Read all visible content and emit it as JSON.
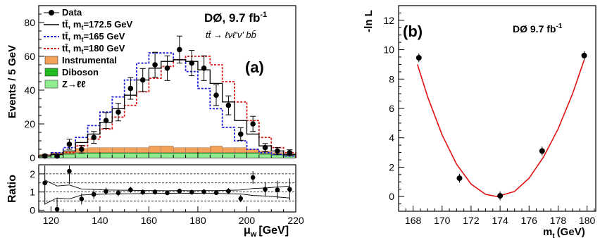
{
  "chart_data": [
    {
      "type": "bar",
      "panel_label": "(a)",
      "experiment_label": "DØ, 9.7 fb",
      "experiment_label_sup": "-1",
      "channel_label": "tt̄ → ℓνℓ'ν' bb̄",
      "xlabel": "μ",
      "xlabel_sub": "w",
      "xlabel_unit": "[GeV]",
      "ylabel": "Events / 5 GeV",
      "ratio_ylabel": "Ratio",
      "xlim": [
        115,
        220
      ],
      "ylim": [
        0,
        90
      ],
      "ratio_ylim": [
        -0.1,
        2.5
      ],
      "x_ticks": [
        120,
        140,
        160,
        180,
        200,
        220
      ],
      "y_ticks": [
        0,
        20,
        40,
        60,
        80
      ],
      "ratio_ticks": [
        0,
        1,
        2
      ],
      "bin_edges": [
        115,
        120,
        125,
        130,
        135,
        140,
        145,
        150,
        155,
        160,
        165,
        170,
        175,
        180,
        185,
        190,
        195,
        200,
        205,
        210,
        215,
        220
      ],
      "legend": {
        "data": "Data",
        "nominal": "tt̄, m",
        "nominal_sub": "t",
        "nominal_tail": "=172.5 GeV",
        "low": "tt̄, m",
        "low_sub": "t",
        "low_tail": "=165 GeV",
        "high": "tt̄, m",
        "high_sub": "t",
        "high_tail": "=180 GeV",
        "instrumental": "Instrumental",
        "diboson": "Diboson",
        "zll": "Z→ℓℓ"
      },
      "colors": {
        "nominal": "#000000",
        "low": "#1c1cd6",
        "high": "#d61c1c",
        "instrumental": "#f4a15a",
        "diboson": "#22bb22",
        "zll": "#90ee90"
      },
      "series": [
        {
          "name": "Data",
          "x": [
            117.5,
            122.5,
            127.5,
            132.5,
            137.5,
            142.5,
            147.5,
            152.5,
            157.5,
            162.5,
            167.5,
            172.5,
            177.5,
            182.5,
            187.5,
            192.5,
            197.5,
            202.5,
            207.5,
            212.5,
            217.5
          ],
          "values": [
            1,
            1,
            8,
            5,
            12,
            22,
            27,
            41,
            46,
            55,
            53,
            64,
            56,
            53,
            37,
            31,
            14,
            20,
            6,
            4,
            3
          ],
          "errors": [
            1,
            1,
            3,
            2.2,
            3.5,
            4.7,
            5.2,
            6.4,
            6.8,
            7.4,
            7.3,
            8,
            7.5,
            7.3,
            6.1,
            5.6,
            3.7,
            4.5,
            2.4,
            2,
            1.7
          ]
        },
        {
          "name": "tt̄, mt=172.5 GeV",
          "values": [
            1,
            2,
            4,
            9,
            14,
            21,
            29,
            37,
            46,
            53,
            57,
            58,
            57,
            52,
            44,
            33,
            22,
            14,
            7,
            4,
            2
          ]
        },
        {
          "name": "tt̄, mt=165 GeV",
          "values": [
            1,
            3,
            6,
            12,
            19,
            27,
            36,
            46,
            56,
            62,
            62,
            58,
            51,
            41,
            29,
            18,
            10,
            5,
            3,
            2,
            1
          ]
        },
        {
          "name": "tt̄, mt=180 GeV",
          "values": [
            1,
            2,
            3,
            7,
            11,
            17,
            24,
            31,
            39,
            47,
            54,
            58,
            60,
            60,
            55,
            45,
            33,
            22,
            12,
            6,
            3
          ]
        },
        {
          "name": "Instrumental",
          "values": [
            0.5,
            1,
            1.5,
            2.5,
            3,
            3,
            3,
            3,
            3,
            4,
            4,
            3,
            3,
            3,
            4,
            3,
            3,
            2,
            1.5,
            1,
            0.5
          ]
        },
        {
          "name": "Diboson",
          "values": [
            0.5,
            0.5,
            0.5,
            0.5,
            0.5,
            0.5,
            0.5,
            0.5,
            0.5,
            0.5,
            0.5,
            0.5,
            0.5,
            0.5,
            0.5,
            0.5,
            0.5,
            0.5,
            0.5,
            0.5,
            0.5
          ]
        },
        {
          "name": "Z→ℓℓ",
          "values": [
            1,
            1.5,
            2,
            2.5,
            2.5,
            2.5,
            2.5,
            2.5,
            2.5,
            2.5,
            2.5,
            2.5,
            2.5,
            2.5,
            2.5,
            2.5,
            2.5,
            2.5,
            2,
            1.5,
            1
          ]
        },
        {
          "name": "Ratio",
          "x": [
            117.5,
            122.5,
            127.5,
            132.5,
            137.5,
            142.5,
            147.5,
            152.5,
            157.5,
            162.5,
            167.5,
            172.5,
            177.5,
            182.5,
            187.5,
            192.5,
            197.5,
            202.5,
            207.5,
            212.5,
            217.5
          ],
          "values": [
            1.5,
            0.05,
            2.15,
            0.62,
            0.87,
            1.04,
            0.95,
            1.12,
            0.99,
            1.0,
            0.95,
            1.05,
            0.99,
            1.01,
            0.96,
            1.05,
            0.64,
            1.8,
            1.15,
            1.12,
            1.15
          ],
          "errors": [
            1.2,
            0.6,
            0.7,
            0.3,
            0.25,
            0.2,
            0.18,
            0.17,
            0.15,
            0.14,
            0.13,
            0.14,
            0.13,
            0.14,
            0.14,
            0.17,
            0.2,
            0.35,
            0.4,
            0.5,
            0.6
          ]
        }
      ]
    },
    {
      "type": "scatter",
      "panel_label": "(b)",
      "experiment_label": "DØ 9.7 fb",
      "experiment_label_sup": "-1",
      "xlabel": "m",
      "xlabel_sub": "t",
      "xlabel_unit": "(GeV)",
      "ylabel": "-ln L",
      "xlim": [
        167,
        180.6
      ],
      "ylim": [
        -1,
        13
      ],
      "x_ticks": [
        168,
        170,
        172,
        174,
        176,
        178,
        180
      ],
      "y_ticks": [
        0,
        2,
        4,
        6,
        8,
        10,
        12
      ],
      "colors": {
        "fit": "#e01010",
        "points": "#000000"
      },
      "series": [
        {
          "name": "points",
          "x": [
            168.4,
            171.2,
            174.0,
            176.9,
            179.8
          ],
          "values": [
            9.45,
            1.25,
            0.05,
            3.1,
            9.6
          ],
          "errors": [
            0.3,
            0.3,
            0.3,
            0.3,
            0.3
          ]
        },
        {
          "name": "fit",
          "x": [
            168.3,
            169,
            170,
            171,
            172,
            173,
            173.8,
            175,
            176,
            177,
            178,
            179,
            179.8
          ],
          "values": [
            9.0,
            6.8,
            4.2,
            2.2,
            0.85,
            0.15,
            0.0,
            0.35,
            1.25,
            2.7,
            4.6,
            7.0,
            9.3
          ]
        }
      ]
    }
  ]
}
